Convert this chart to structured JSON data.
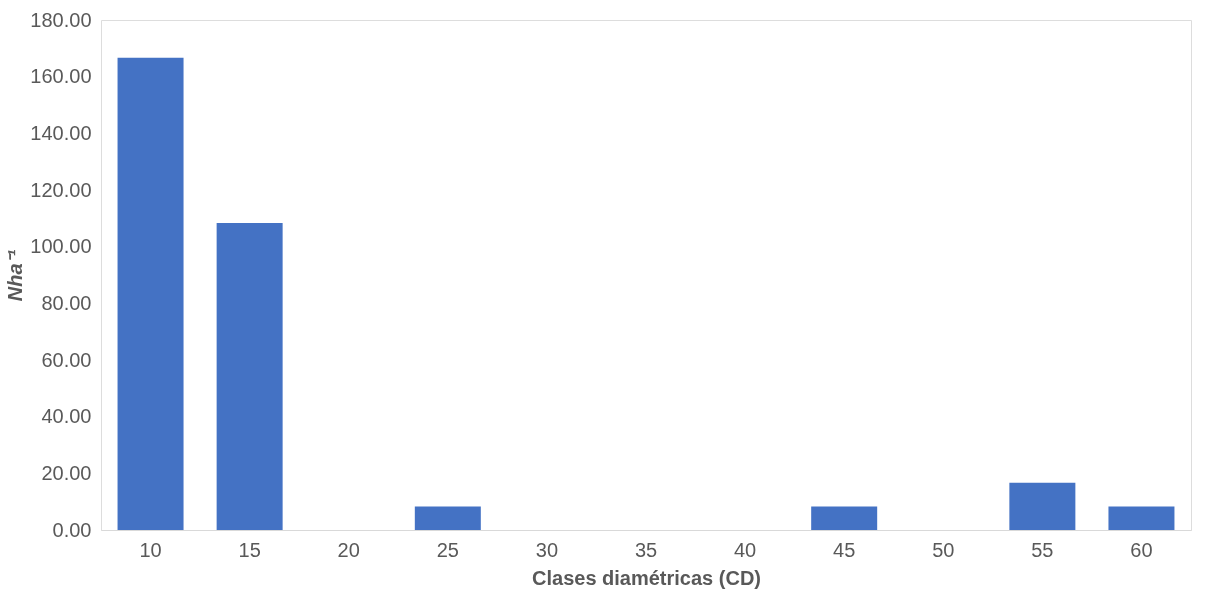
{
  "chart_data": {
    "type": "bar",
    "xlabel": "Clases diamétricas (CD)",
    "ylabel": "Nha⁻¹",
    "categories": [
      "10",
      "15",
      "20",
      "25",
      "30",
      "35",
      "40",
      "45",
      "50",
      "55",
      "60"
    ],
    "values": [
      166.67,
      108.33,
      0,
      8.33,
      0,
      0,
      0,
      8.33,
      0,
      16.67,
      8.33
    ],
    "color": "#4472c4",
    "ylim": [
      0,
      180
    ],
    "yticks": [
      {
        "value": 0,
        "label": "0.00"
      },
      {
        "value": 20,
        "label": "20.00"
      },
      {
        "value": 40,
        "label": "40.00"
      },
      {
        "value": 60,
        "label": "60.00"
      },
      {
        "value": 80,
        "label": "80.00"
      },
      {
        "value": 100,
        "label": "100.00"
      },
      {
        "value": 120,
        "label": "120.00"
      },
      {
        "value": 140,
        "label": "140.00"
      },
      {
        "value": 160,
        "label": "160.00"
      },
      {
        "value": 180,
        "label": "180.00"
      }
    ],
    "grid": false
  }
}
